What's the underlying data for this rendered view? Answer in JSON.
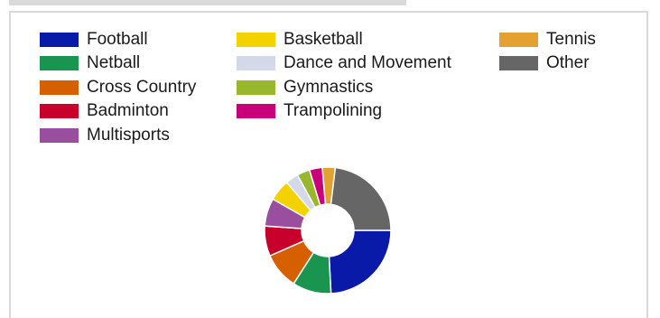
{
  "chart_data": {
    "type": "pie",
    "categories": [
      "Football",
      "Netball",
      "Cross Country",
      "Badminton",
      "Multisports",
      "Basketball",
      "Dance and Movement",
      "Gymnastics",
      "Trampolining",
      "Tennis",
      "Other"
    ],
    "values": [
      22,
      9,
      8.5,
      7,
      6.5,
      5,
      3,
      3,
      3,
      3,
      21
    ],
    "colors": [
      "#0a1aa8",
      "#1a9550",
      "#d66000",
      "#c8002c",
      "#9a4f9e",
      "#f3d200",
      "#d3d9e8",
      "#98b72c",
      "#c8007a",
      "#e3a230",
      "#666666"
    ],
    "legend_placement": "top",
    "donut": true
  }
}
